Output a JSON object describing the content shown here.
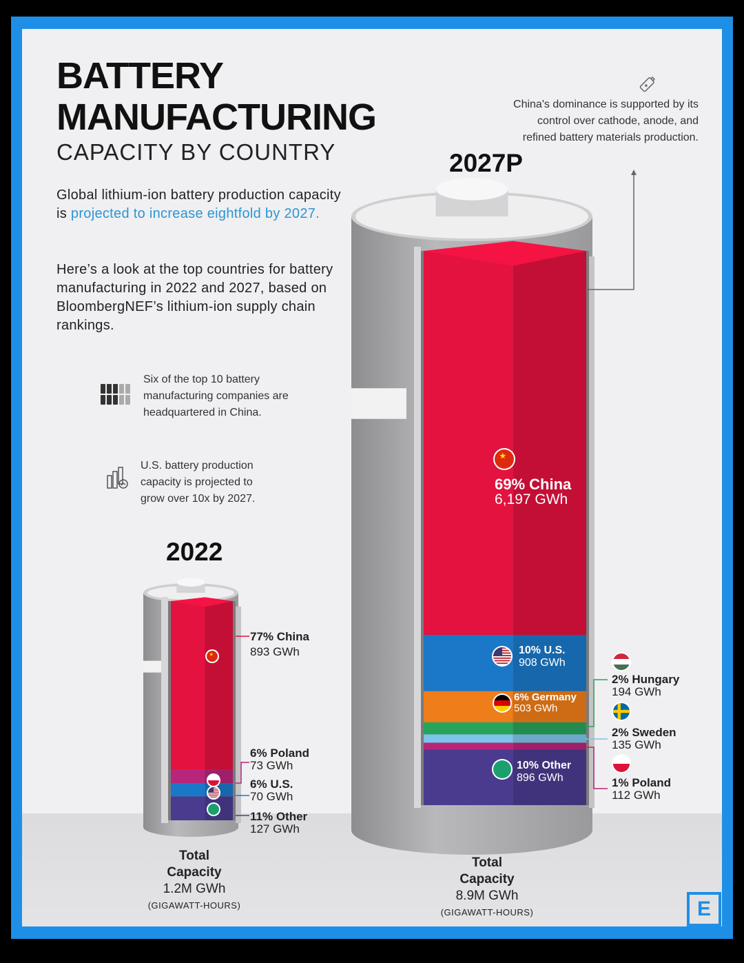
{
  "header": {
    "title_line1": "BATTERY",
    "title_line2": "MANUFACTURING",
    "subtitle": "CAPACITY BY COUNTRY"
  },
  "intro": {
    "p1_prefix": "Global lithium-ion battery production capacity is ",
    "p1_highlight": "projected to increase eightfold by 2027.",
    "p2": "Here’s a look at the top countries for battery manufacturing in 2022 and 2027, based on BloombergNEF’s lithium-ion supply chain rankings."
  },
  "notes": {
    "companies": "Six of the top 10 battery manufacturing companies are headquartered in China.",
    "us_growth": "U.S. battery production capacity is projected to grow over 10x by 2027.",
    "china_dominance": "China's dominance is supported by its control over cathode, anode, and refined battery materials production."
  },
  "colors": {
    "china": "#e3123f",
    "us": "#1b78c8",
    "germany": "#ef7d1a",
    "hungary": "#27a35c",
    "sweden": "#7cc4ea",
    "poland": "#b8257a",
    "other": "#4a3b8f",
    "frame": "#1e8fe6",
    "highlight": "#2a96d6"
  },
  "chart_data": [
    {
      "type": "bar",
      "title": "2022",
      "unit": "GWh",
      "total_label": "Total Capacity",
      "total_value": "1.2M GWh",
      "total_unit": "(GIGAWATT-HOURS)",
      "segments": [
        {
          "name": "China",
          "percent_label": "77%",
          "value": 893,
          "value_label": "893 GWh",
          "color": "#e3123f",
          "flag": "china"
        },
        {
          "name": "Poland",
          "percent_label": "6%",
          "value": 73,
          "value_label": "73 GWh",
          "color": "#b8257a",
          "flag": "poland"
        },
        {
          "name": "U.S.",
          "percent_label": "6%",
          "value": 70,
          "value_label": "70 GWh",
          "color": "#1b78c8",
          "flag": "us"
        },
        {
          "name": "Other",
          "percent_label": "11%",
          "value": 127,
          "value_label": "127 GWh",
          "color": "#4a3b8f",
          "flag": "other"
        }
      ]
    },
    {
      "type": "bar",
      "title": "2027P",
      "unit": "GWh",
      "total_label": "Total Capacity",
      "total_value": "8.9M GWh",
      "total_unit": "(GIGAWATT-HOURS)",
      "segments": [
        {
          "name": "China",
          "percent_label": "69%",
          "value": 6197,
          "value_label": "6,197 GWh",
          "color": "#e3123f",
          "flag": "china"
        },
        {
          "name": "U.S.",
          "percent_label": "10%",
          "value": 908,
          "value_label": "908 GWh",
          "color": "#1b78c8",
          "flag": "us"
        },
        {
          "name": "Germany",
          "percent_label": "6%",
          "value": 503,
          "value_label": "503 GWh",
          "color": "#ef7d1a",
          "flag": "germany"
        },
        {
          "name": "Hungary",
          "percent_label": "2%",
          "value": 194,
          "value_label": "194 GWh",
          "color": "#27a35c",
          "flag": "hungary"
        },
        {
          "name": "Sweden",
          "percent_label": "2%",
          "value": 135,
          "value_label": "135 GWh",
          "color": "#7cc4ea",
          "flag": "sweden"
        },
        {
          "name": "Poland",
          "percent_label": "1%",
          "value": 112,
          "value_label": "112 GWh",
          "color": "#b8257a",
          "flag": "poland"
        },
        {
          "name": "Other",
          "percent_label": "10%",
          "value": 896,
          "value_label": "896 GWh",
          "color": "#4a3b8f",
          "flag": "other"
        }
      ]
    }
  ],
  "logo": {
    "letter": "E"
  }
}
